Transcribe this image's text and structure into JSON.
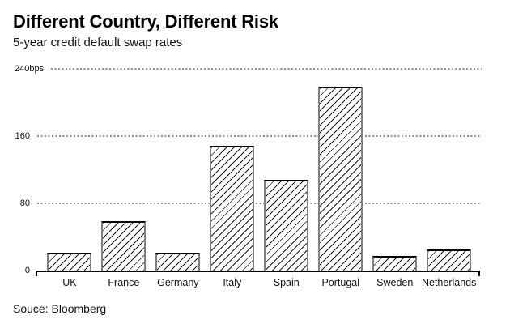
{
  "header": {
    "title": "Different Country, Different Risk",
    "subtitle": "5-year credit default swap rates"
  },
  "footer": {
    "source": "Souce: Bloomberg"
  },
  "chart_data": {
    "type": "bar",
    "title": "Different Country, Different Risk",
    "subtitle": "5-year credit default swap rates",
    "categories": [
      "UK",
      "France",
      "Germany",
      "Italy",
      "Spain",
      "Portugal",
      "Sweden",
      "Netherlands"
    ],
    "values": [
      22,
      59,
      22,
      149,
      108,
      219,
      18,
      26
    ],
    "unit": "bps",
    "xlabel": "",
    "ylabel": "",
    "ylim": [
      0,
      240
    ],
    "yticks": [
      {
        "value": 240,
        "label": "240bps"
      },
      {
        "value": 160,
        "label": "160"
      },
      {
        "value": 80,
        "label": "80"
      },
      {
        "value": 0,
        "label": "0"
      }
    ],
    "grid": {
      "horizontal": true,
      "style": "dotted",
      "color": "#8f8f8f"
    },
    "legend": "none",
    "bar_style": {
      "fill": "#ffffff",
      "hatch": "/",
      "hatch_color": "#1a1a1a",
      "edge_color": "#808080"
    },
    "source": "Souce: Bloomberg"
  },
  "colors": {
    "background": "#ffffff",
    "text": "#000000",
    "grid": "#8f8f8f",
    "axis": "#000000",
    "bar_edge": "#808080"
  }
}
